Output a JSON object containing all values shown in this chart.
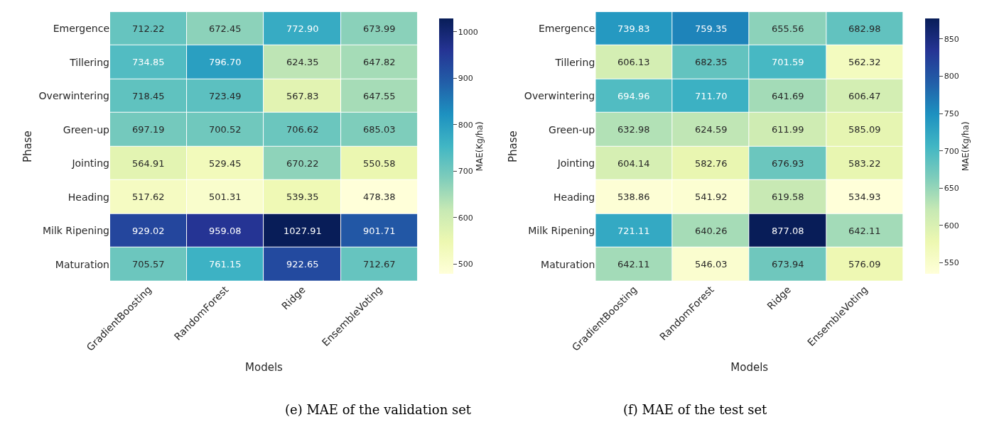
{
  "chart_data": [
    {
      "type": "heatmap",
      "xlabel": "Models",
      "ylabel": "Phase",
      "clabel": "MAE(Kg/ha)",
      "annotations": [
        "(e) MAE of the validation set"
      ],
      "categories": [
        "GradientBoosting",
        "RandomForest",
        "Ridge",
        "EnsembleVoting"
      ],
      "y_categories": [
        "Emergence",
        "Tillering",
        "Overwintering",
        "Green-up",
        "Jointing",
        "Heading",
        "Milk Ripening",
        "Maturation"
      ],
      "cells": [
        [
          712.22,
          672.45,
          772.9,
          673.99
        ],
        [
          734.85,
          796.7,
          624.35,
          647.82
        ],
        [
          718.45,
          723.49,
          567.83,
          647.55
        ],
        [
          697.19,
          700.52,
          706.62,
          685.03
        ],
        [
          564.91,
          529.45,
          670.22,
          550.58
        ],
        [
          517.62,
          501.31,
          539.35,
          478.38
        ],
        [
          929.02,
          959.08,
          1027.91,
          901.71
        ],
        [
          705.57,
          761.15,
          922.65,
          712.67
        ]
      ],
      "cell_labels": [
        [
          "712.22",
          "672.45",
          "772.90",
          "673.99"
        ],
        [
          "734.85",
          "796.70",
          "624.35",
          "647.82"
        ],
        [
          "718.45",
          "723.49",
          "567.83",
          "647.55"
        ],
        [
          "697.19",
          "700.52",
          "706.62",
          "685.03"
        ],
        [
          "564.91",
          "529.45",
          "670.22",
          "550.58"
        ],
        [
          "517.62",
          "501.31",
          "539.35",
          "478.38"
        ],
        [
          "929.02",
          "959.08",
          "1027.91",
          "901.71"
        ],
        [
          "705.57",
          "761.15",
          "922.65",
          "712.67"
        ]
      ],
      "clim": [
        478.38,
        1027.91
      ],
      "cticks": [
        500,
        600,
        700,
        800,
        900,
        1000
      ]
    },
    {
      "type": "heatmap",
      "xlabel": "Models",
      "ylabel": "Phase",
      "clabel": "MAE(Kg/ha)",
      "annotations": [
        "(f) MAE of the test set"
      ],
      "categories": [
        "GradientBoosting",
        "RandomForest",
        "Ridge",
        "EnsembleVoting"
      ],
      "y_categories": [
        "Emergence",
        "Tillering",
        "Overwintering",
        "Green-up",
        "Jointing",
        "Heading",
        "Milk Ripening",
        "Maturation"
      ],
      "cells": [
        [
          739.83,
          759.35,
          655.56,
          682.98
        ],
        [
          606.13,
          682.35,
          701.59,
          562.32
        ],
        [
          694.96,
          711.7,
          641.69,
          606.47
        ],
        [
          632.98,
          624.59,
          611.99,
          585.09
        ],
        [
          604.14,
          582.76,
          676.93,
          583.22
        ],
        [
          538.86,
          541.92,
          619.58,
          534.93
        ],
        [
          721.11,
          640.26,
          877.08,
          642.11
        ],
        [
          642.11,
          546.03,
          673.94,
          576.09
        ]
      ],
      "cell_labels": [
        [
          "739.83",
          "759.35",
          "655.56",
          "682.98"
        ],
        [
          "606.13",
          "682.35",
          "701.59",
          "562.32"
        ],
        [
          "694.96",
          "711.70",
          "641.69",
          "606.47"
        ],
        [
          "632.98",
          "624.59",
          "611.99",
          "585.09"
        ],
        [
          "604.14",
          "582.76",
          "676.93",
          "583.22"
        ],
        [
          "538.86",
          "541.92",
          "619.58",
          "534.93"
        ],
        [
          "721.11",
          "640.26",
          "877.08",
          "642.11"
        ],
        [
          "642.11",
          "546.03",
          "673.94",
          "576.09"
        ]
      ],
      "clim": [
        534.93,
        877.08
      ],
      "cticks": [
        550,
        600,
        650,
        700,
        750,
        800,
        850
      ]
    }
  ]
}
